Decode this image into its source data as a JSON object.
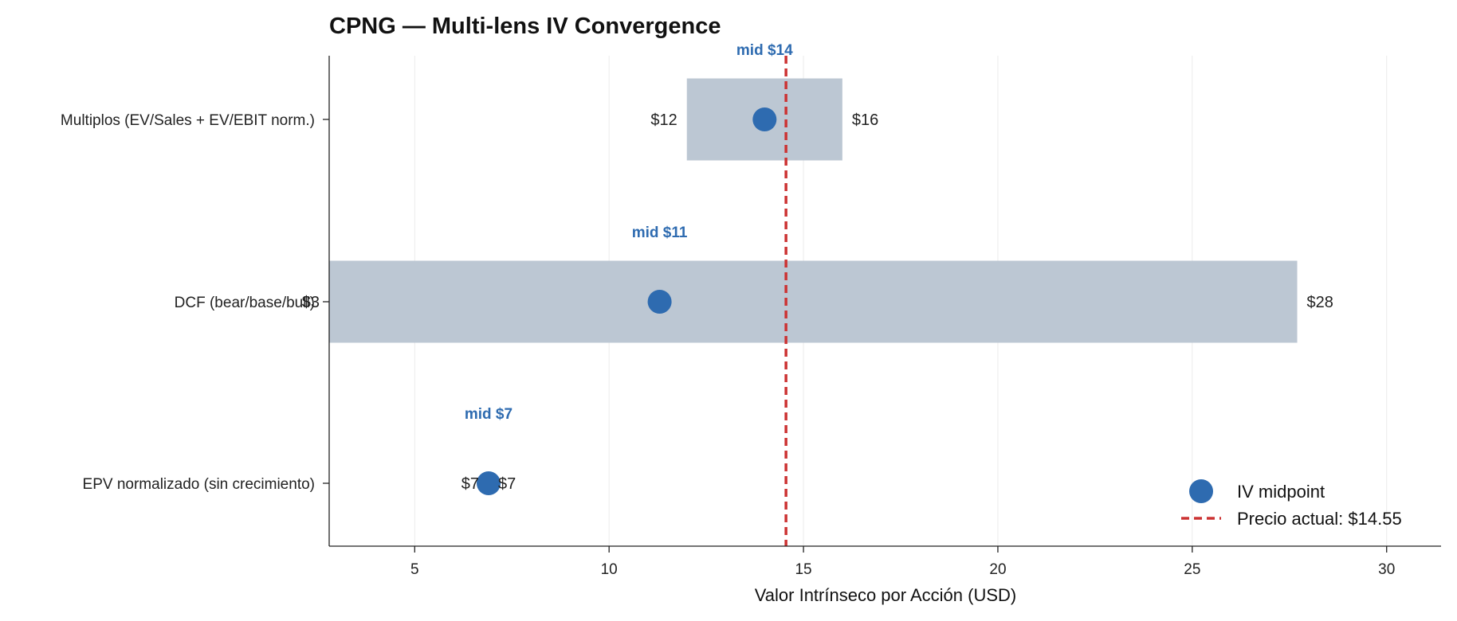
{
  "chart_data": {
    "type": "range-dot",
    "title": "CPNG — Multi-lens IV Convergence",
    "xlabel": "Valor Intrínseco por Acción (USD)",
    "ylabel": "",
    "xlim": [
      2.8,
      31.4
    ],
    "xticks": [
      5,
      10,
      15,
      20,
      25,
      30
    ],
    "grid": "vertical",
    "legend_placement": "lower-right",
    "rows": [
      {
        "category": "Multiplos (EV/Sales + EV/EBIT norm.)",
        "low": 12,
        "high": 16,
        "mid": 14,
        "low_label": "$12",
        "high_label": "$16",
        "mid_label": "mid $14"
      },
      {
        "category": "DCF (bear/base/bull)",
        "low": 2.8,
        "high": 27.7,
        "mid": 11.3,
        "low_label": "$3",
        "high_label": "$28",
        "mid_label": "mid $11"
      },
      {
        "category": "EPV normalizado (sin crecimiento)",
        "low": 6.9,
        "high": 6.9,
        "mid": 6.9,
        "low_label": "$7",
        "high_label": "$7",
        "mid_label": "mid $7"
      }
    ],
    "reference_line": {
      "value": 14.55,
      "label": "Precio actual: $14.55"
    },
    "legend": [
      {
        "name": "IV midpoint",
        "marker": "dot"
      },
      {
        "name": "Precio actual: $14.55",
        "marker": "dashed-line"
      }
    ],
    "colors": {
      "range_band": "#bcc7d3",
      "midpoint": "#2e6bb0",
      "mid_label": "#2e6bb0",
      "price_line": "#cc3333",
      "grid": "#ebebeb",
      "axis": "#222222"
    }
  }
}
